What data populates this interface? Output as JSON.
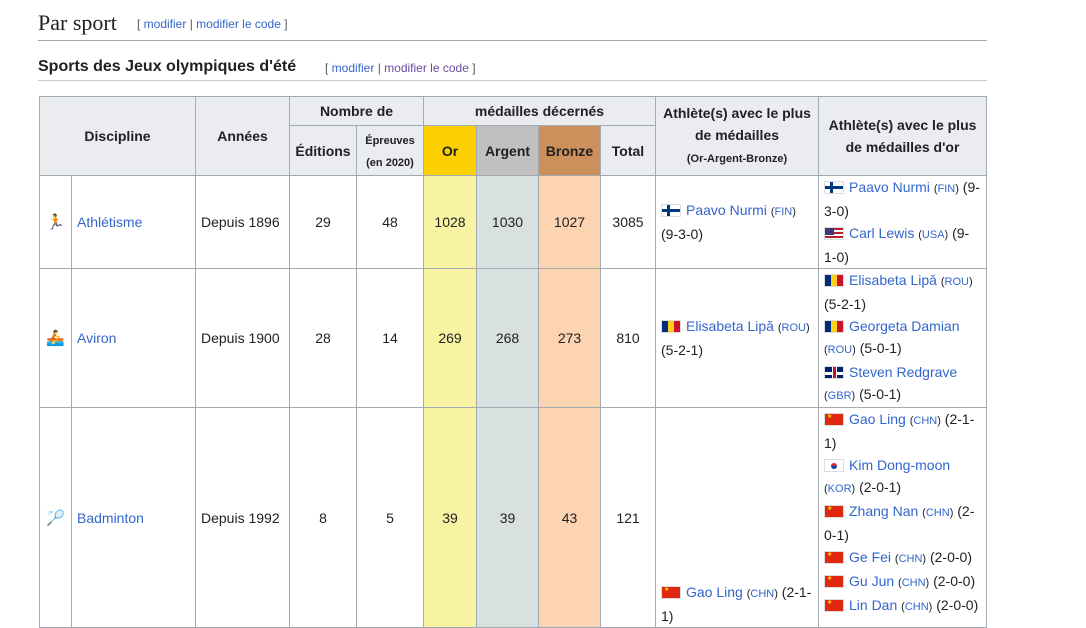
{
  "section": {
    "title": "Par sport",
    "edit": "modifier",
    "edit_code": "modifier le code"
  },
  "subsection": {
    "title": "Sports des Jeux olympiques d'été",
    "edit": "modifier",
    "edit_code": "modifier le code"
  },
  "table": {
    "headers": {
      "discipline": "Discipline",
      "annees": "Années",
      "nombre_de": "Nombre de",
      "medailles": "médailles décernés",
      "editions": "Éditions",
      "epreuves": "Épreuves",
      "epreuves_sub": "(en 2020)",
      "or": "Or",
      "argent": "Argent",
      "bronze": "Bronze",
      "total": "Total",
      "athlete_plus": "Athlète(s) avec le plus de médailles",
      "athlete_plus_sub": "(Or-Argent-Bronze)",
      "athlete_or": "Athlète(s) avec le plus de médailles d'or"
    },
    "rows": [
      {
        "icon": "athletics-icon",
        "glyph": "🏃",
        "discipline": "Athlétisme",
        "annees": "Depuis 1896",
        "editions": "29",
        "epreuves": "48",
        "or": "1028",
        "argent": "1030",
        "bronze": "1027",
        "total": "3085",
        "plus": [
          {
            "name": "Paavo Nurmi",
            "flag": "fin",
            "code": "FIN",
            "record": "(9-3-0)"
          }
        ],
        "gold": [
          {
            "name": "Paavo Nurmi",
            "flag": "fin",
            "code": "FIN",
            "record": "(9-3-0)"
          },
          {
            "name": "Carl Lewis",
            "flag": "usa",
            "code": "USA",
            "record": "(9-1-0)"
          }
        ]
      },
      {
        "icon": "rowing-icon",
        "glyph": "🚣",
        "discipline": "Aviron",
        "annees": "Depuis 1900",
        "editions": "28",
        "epreuves": "14",
        "or": "269",
        "argent": "268",
        "bronze": "273",
        "total": "810",
        "plus": [
          {
            "name": "Elisabeta Lipă",
            "flag": "rou",
            "code": "ROU",
            "record": "(5-2-1)"
          }
        ],
        "gold": [
          {
            "name": "Elisabeta Lipă",
            "flag": "rou",
            "code": "ROU",
            "record": "(5-2-1)"
          },
          {
            "name": "Georgeta Damian",
            "flag": "rou",
            "code": "ROU",
            "record": "(5-0-1)"
          },
          {
            "name": "Steven Redgrave",
            "flag": "gbr",
            "code": "GBR",
            "record": "(5-0-1)"
          }
        ]
      },
      {
        "icon": "badminton-icon",
        "glyph": "🏸",
        "discipline": "Badminton",
        "annees": "Depuis 1992",
        "editions": "8",
        "epreuves": "5",
        "or": "39",
        "argent": "39",
        "bronze": "43",
        "total": "121",
        "plus": [
          {
            "name": "Gao Ling",
            "flag": "chn",
            "code": "CHN",
            "record": "(2-1-1)"
          }
        ],
        "gold": [
          {
            "name": "Gao Ling",
            "flag": "chn",
            "code": "CHN",
            "record": "(2-1-1)"
          },
          {
            "name": "Kim Dong-moon",
            "flag": "kor",
            "code": "KOR",
            "record": "(2-0-1)"
          },
          {
            "name": "Zhang Nan",
            "flag": "chn",
            "code": "CHN",
            "record": "(2-0-1)"
          },
          {
            "name": "Ge Fei",
            "flag": "chn",
            "code": "CHN",
            "record": "(2-0-0)"
          },
          {
            "name": "Gu Jun",
            "flag": "chn",
            "code": "CHN",
            "record": "(2-0-0)"
          },
          {
            "name": "Lin Dan",
            "flag": "chn",
            "code": "CHN",
            "record": "(2-0-0)"
          }
        ]
      }
    ]
  }
}
